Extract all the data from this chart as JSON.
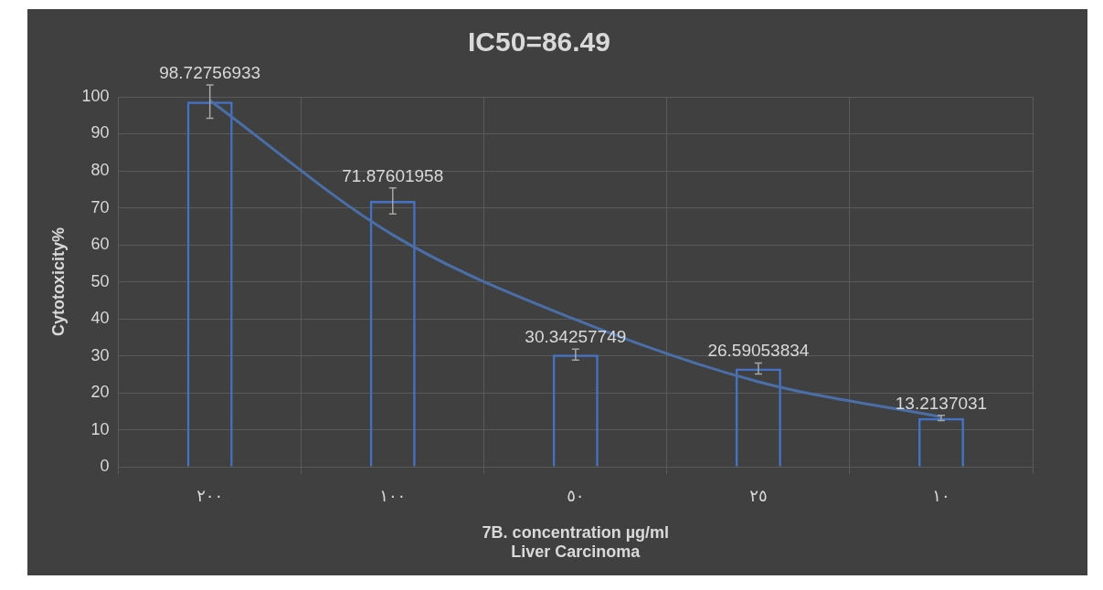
{
  "chart_data": {
    "type": "bar",
    "title": "IC50=86.49",
    "xlabel": "7B. concentration µg/ml\nLiver Carcinoma",
    "ylabel": "Cytotoxicity%",
    "categories": [
      "٢٠٠",
      "١٠٠",
      "٥٠",
      "٢٥",
      "١٠"
    ],
    "series": [
      {
        "color": "#4472c4",
        "values": [
          98.72756933,
          71.87601958,
          30.34257749,
          26.59053834,
          13.2137031
        ],
        "errors": [
          4.5,
          3.5,
          1.5,
          1.5,
          0.7
        ],
        "value_labels": [
          "98.72756933",
          "71.87601958",
          "30.34257749",
          "26.59053834",
          "13.2137031"
        ]
      },
      {
        "type": "line",
        "color": "#4a6fa8",
        "values": [
          99,
          62.7,
          39.8,
          23,
          13.5
        ]
      }
    ],
    "ylim": [
      0,
      100
    ],
    "yticks": [
      0,
      10,
      20,
      30,
      40,
      50,
      60,
      70,
      80,
      90,
      100
    ],
    "grid": true,
    "legend": false,
    "line_style": "solid",
    "marker": "none"
  }
}
